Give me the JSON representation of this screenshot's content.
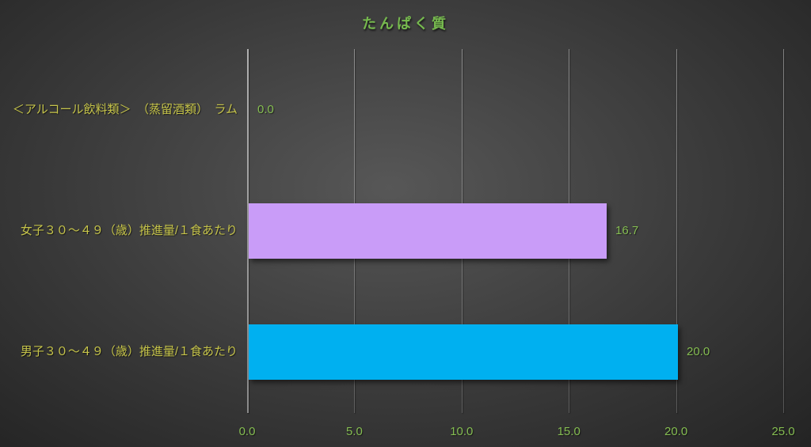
{
  "chart_data": {
    "type": "bar",
    "orientation": "horizontal",
    "title": "たんぱく質",
    "categories": [
      "＜アルコール飲料類＞　（蒸留酒類）　ラム",
      "女子３０～４９（歳）推進量/１食あたり",
      "男子３０～４９（歳）推進量/１食あたり"
    ],
    "values": [
      0.0,
      16.7,
      20.0
    ],
    "value_labels": [
      "0.0",
      "16.7",
      "20.0"
    ],
    "bar_colors": [
      null,
      "#c99cf8",
      "#00b0f0"
    ],
    "xlabel": "",
    "ylabel": "",
    "xlim": [
      0,
      25
    ],
    "xticks": [
      0,
      5,
      10,
      15,
      20,
      25
    ],
    "xtick_labels": [
      "0.0",
      "5.0",
      "10.0",
      "15.0",
      "20.0",
      "25.0"
    ],
    "grid": true,
    "legend": "none",
    "colors": {
      "title": "#76b94e",
      "category_label": "#c6c44a",
      "value_label": "#85bd52",
      "tick_label": "#85bd52",
      "background_center": "#575757",
      "background_edge": "#242424"
    }
  }
}
